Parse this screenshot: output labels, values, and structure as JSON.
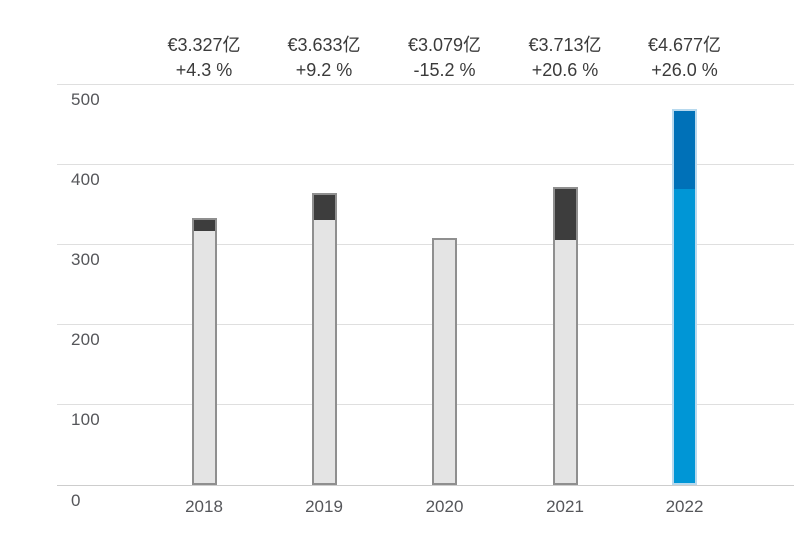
{
  "chart_data": {
    "type": "bar",
    "title": "",
    "categories": [
      "2018",
      "2019",
      "2020",
      "2021",
      "2022"
    ],
    "totals": [
      332.7,
      363.3,
      307.9,
      371.3,
      467.7
    ],
    "series": [
      {
        "name": "base-previous-year-level",
        "values": [
          319.0,
          332.7,
          307.9,
          307.9,
          371.3
        ]
      },
      {
        "name": "year-over-year-gain-cap",
        "values": [
          13.7,
          30.6,
          0,
          63.4,
          96.4
        ]
      }
    ],
    "bar_styles": [
      "gray",
      "gray",
      "gray",
      "gray",
      "blue"
    ],
    "annotations": [
      {
        "value": "€3.327亿",
        "change": "+4.3 %"
      },
      {
        "value": "€3.633亿",
        "change": "+9.2 %"
      },
      {
        "value": "€3.079亿",
        "change": "-15.2 %"
      },
      {
        "value": "€3.713亿",
        "change": "+20.6 %"
      },
      {
        "value": "€4.677亿",
        "change": "+26.0 %"
      }
    ],
    "ylim": [
      0,
      500
    ],
    "yticks": [
      0,
      100,
      200,
      300,
      400,
      500
    ],
    "ytick_labels": [
      "0",
      "100",
      "200",
      "300",
      "400",
      "500"
    ],
    "grid": true,
    "legend": false,
    "colors": {
      "background": "#ffffff",
      "gray_fill": "#e4e4e4",
      "gray_border": "#8f8f8f",
      "dark_segment": "#3d3d3d",
      "blue_fill": "#0096d6",
      "blue_dark_segment": "#0071b8",
      "blue_border": "#b7d9ee",
      "gridline": "#dfdfdf",
      "baseline": "#cdcdcd",
      "axis_text": "#55565a",
      "annotation_text": "#3b3b3b"
    }
  }
}
